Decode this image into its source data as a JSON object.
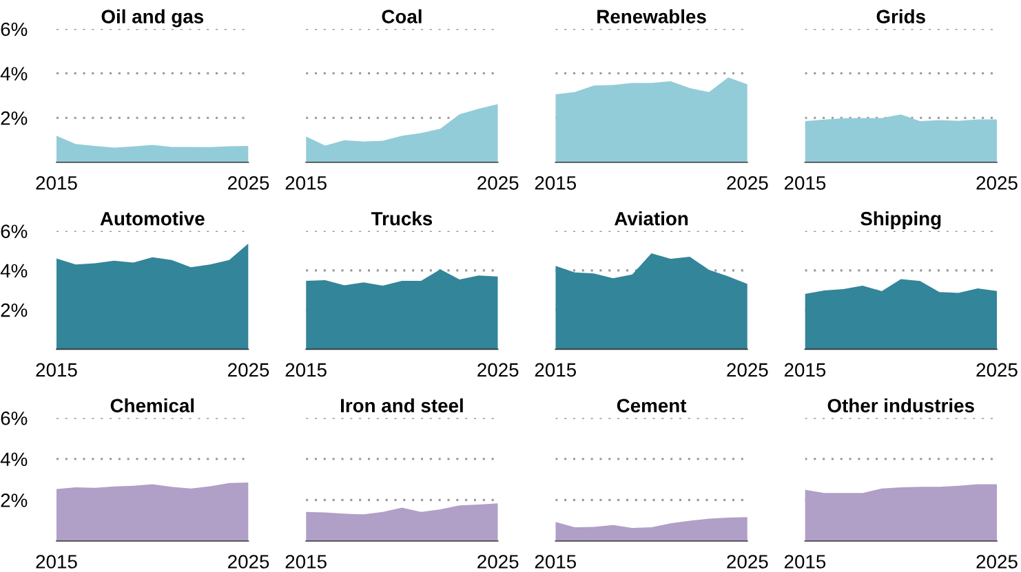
{
  "chart_data": [
    {
      "type": "area",
      "title": "Oil and gas",
      "x": [
        2015,
        2016,
        2017,
        2018,
        2019,
        2020,
        2021,
        2022,
        2023,
        2024,
        2025
      ],
      "values": [
        1.19,
        0.82,
        0.74,
        0.66,
        0.71,
        0.78,
        0.69,
        0.69,
        0.68,
        0.72,
        0.74
      ],
      "color": "#93ccd9",
      "xlim": [
        2015,
        2025
      ],
      "xticks": [
        2015,
        2025
      ],
      "ylim": [
        0,
        6
      ],
      "yticks": [
        {
          "value": 2,
          "label": "2%"
        },
        {
          "value": 4,
          "label": "4%"
        },
        {
          "value": 6,
          "label": "6%"
        }
      ],
      "grid": "y"
    },
    {
      "type": "area",
      "title": "Coal",
      "x": [
        2015,
        2016,
        2017,
        2018,
        2019,
        2020,
        2021,
        2022,
        2023,
        2024,
        2025
      ],
      "values": [
        1.16,
        0.75,
        0.99,
        0.94,
        0.97,
        1.19,
        1.32,
        1.51,
        2.16,
        2.41,
        2.62
      ],
      "color": "#93ccd9",
      "xlim": [
        2015,
        2025
      ],
      "xticks": [
        2015,
        2025
      ],
      "ylim": [
        0,
        6
      ],
      "yticks": [
        {
          "value": 2,
          "label": null
        },
        {
          "value": 4,
          "label": null
        },
        {
          "value": 6,
          "label": null
        }
      ],
      "grid": "y",
      "tick_labels": "x"
    },
    {
      "type": "area",
      "title": "Renewables",
      "x": [
        2015,
        2016,
        2017,
        2018,
        2019,
        2020,
        2021,
        2022,
        2023,
        2024,
        2025
      ],
      "values": [
        3.06,
        3.16,
        3.45,
        3.48,
        3.57,
        3.57,
        3.65,
        3.34,
        3.16,
        3.82,
        3.51
      ],
      "color": "#93ccd9",
      "xlim": [
        2015,
        2025
      ],
      "xticks": [
        2015,
        2025
      ],
      "ylim": [
        0,
        6
      ],
      "yticks": [
        {
          "value": 2,
          "label": null
        },
        {
          "value": 4,
          "label": null
        },
        {
          "value": 6,
          "label": null
        }
      ],
      "grid": "y",
      "tick_labels": "x"
    },
    {
      "type": "area",
      "title": "Grids",
      "x": [
        2015,
        2016,
        2017,
        2018,
        2019,
        2020,
        2021,
        2022,
        2023,
        2024,
        2025
      ],
      "values": [
        1.85,
        1.92,
        1.98,
        1.99,
        1.99,
        2.15,
        1.85,
        1.9,
        1.87,
        1.93,
        1.93
      ],
      "color": "#93ccd9",
      "xlim": [
        2015,
        2025
      ],
      "xticks": [
        2015,
        2025
      ],
      "ylim": [
        0,
        6
      ],
      "yticks": [
        {
          "value": 2,
          "label": null
        },
        {
          "value": 4,
          "label": null
        },
        {
          "value": 6,
          "label": null
        }
      ],
      "grid": "y",
      "tick_labels": "x"
    },
    {
      "type": "area",
      "title": "Automotive",
      "x": [
        2015,
        2016,
        2017,
        2018,
        2019,
        2020,
        2021,
        2022,
        2023,
        2024,
        2025
      ],
      "values": [
        4.61,
        4.3,
        4.36,
        4.49,
        4.4,
        4.67,
        4.53,
        4.16,
        4.3,
        4.53,
        5.37
      ],
      "color": "#33859a",
      "xlim": [
        2015,
        2025
      ],
      "xticks": [
        2015,
        2025
      ],
      "ylim": [
        0,
        6
      ],
      "yticks": [
        {
          "value": 2,
          "label": "2%"
        },
        {
          "value": 4,
          "label": "4%"
        },
        {
          "value": 6,
          "label": "6%"
        }
      ],
      "grid": "y"
    },
    {
      "type": "area",
      "title": "Trucks",
      "x": [
        2015,
        2016,
        2017,
        2018,
        2019,
        2020,
        2021,
        2022,
        2023,
        2024,
        2025
      ],
      "values": [
        3.47,
        3.51,
        3.24,
        3.39,
        3.23,
        3.47,
        3.47,
        4.06,
        3.54,
        3.74,
        3.69
      ],
      "color": "#33859a",
      "xlim": [
        2015,
        2025
      ],
      "xticks": [
        2015,
        2025
      ],
      "ylim": [
        0,
        6
      ],
      "yticks": [
        {
          "value": 2,
          "label": null
        },
        {
          "value": 4,
          "label": null
        },
        {
          "value": 6,
          "label": null
        }
      ],
      "grid": "y",
      "tick_labels": "x"
    },
    {
      "type": "area",
      "title": "Aviation",
      "x": [
        2015,
        2016,
        2017,
        2018,
        2019,
        2020,
        2021,
        2022,
        2023,
        2024,
        2025
      ],
      "values": [
        4.23,
        3.9,
        3.85,
        3.6,
        3.79,
        4.87,
        4.59,
        4.69,
        4.03,
        3.7,
        3.31
      ],
      "color": "#33859a",
      "xlim": [
        2015,
        2025
      ],
      "xticks": [
        2015,
        2025
      ],
      "ylim": [
        0,
        6
      ],
      "yticks": [
        {
          "value": 2,
          "label": null
        },
        {
          "value": 4,
          "label": null
        },
        {
          "value": 6,
          "label": null
        }
      ],
      "grid": "y",
      "tick_labels": "x"
    },
    {
      "type": "area",
      "title": "Shipping",
      "x": [
        2015,
        2016,
        2017,
        2018,
        2019,
        2020,
        2021,
        2022,
        2023,
        2024,
        2025
      ],
      "values": [
        2.81,
        2.98,
        3.05,
        3.23,
        2.95,
        3.56,
        3.46,
        2.9,
        2.86,
        3.09,
        2.96
      ],
      "color": "#33859a",
      "xlim": [
        2015,
        2025
      ],
      "xticks": [
        2015,
        2025
      ],
      "ylim": [
        0,
        6
      ],
      "yticks": [
        {
          "value": 2,
          "label": null
        },
        {
          "value": 4,
          "label": null
        },
        {
          "value": 6,
          "label": null
        }
      ],
      "grid": "y",
      "tick_labels": "x"
    },
    {
      "type": "area",
      "title": "Chemical",
      "x": [
        2015,
        2016,
        2017,
        2018,
        2019,
        2020,
        2021,
        2022,
        2023,
        2024,
        2025
      ],
      "values": [
        2.53,
        2.62,
        2.59,
        2.66,
        2.69,
        2.77,
        2.64,
        2.56,
        2.67,
        2.83,
        2.85
      ],
      "color": "#b09fc7",
      "xlim": [
        2015,
        2025
      ],
      "xticks": [
        2015,
        2025
      ],
      "ylim": [
        0,
        6
      ],
      "yticks": [
        {
          "value": 2,
          "label": "2%"
        },
        {
          "value": 4,
          "label": "4%"
        },
        {
          "value": 6,
          "label": "6%"
        }
      ],
      "grid": "y"
    },
    {
      "type": "area",
      "title": "Iron and steel",
      "x": [
        2015,
        2016,
        2017,
        2018,
        2019,
        2020,
        2021,
        2022,
        2023,
        2024,
        2025
      ],
      "values": [
        1.42,
        1.39,
        1.33,
        1.3,
        1.42,
        1.63,
        1.42,
        1.54,
        1.74,
        1.78,
        1.84
      ],
      "color": "#b09fc7",
      "xlim": [
        2015,
        2025
      ],
      "xticks": [
        2015,
        2025
      ],
      "ylim": [
        0,
        6
      ],
      "yticks": [
        {
          "value": 2,
          "label": null
        },
        {
          "value": 4,
          "label": null
        },
        {
          "value": 6,
          "label": null
        }
      ],
      "grid": "y",
      "tick_labels": "x"
    },
    {
      "type": "area",
      "title": "Cement",
      "x": [
        2015,
        2016,
        2017,
        2018,
        2019,
        2020,
        2021,
        2022,
        2023,
        2024,
        2025
      ],
      "values": [
        0.93,
        0.67,
        0.69,
        0.78,
        0.64,
        0.67,
        0.86,
        0.99,
        1.09,
        1.14,
        1.17
      ],
      "color": "#b09fc7",
      "xlim": [
        2015,
        2025
      ],
      "xticks": [
        2015,
        2025
      ],
      "ylim": [
        0,
        6
      ],
      "yticks": [
        {
          "value": 2,
          "label": null
        },
        {
          "value": 4,
          "label": null
        },
        {
          "value": 6,
          "label": null
        }
      ],
      "grid": "y",
      "tick_labels": "x"
    },
    {
      "type": "area",
      "title": "Other industries",
      "x": [
        2015,
        2016,
        2017,
        2018,
        2019,
        2020,
        2021,
        2022,
        2023,
        2024,
        2025
      ],
      "values": [
        2.5,
        2.34,
        2.34,
        2.34,
        2.56,
        2.62,
        2.64,
        2.64,
        2.69,
        2.77,
        2.77
      ],
      "color": "#b09fc7",
      "xlim": [
        2015,
        2025
      ],
      "xticks": [
        2015,
        2025
      ],
      "ylim": [
        0,
        6
      ],
      "yticks": [
        {
          "value": 2,
          "label": null
        },
        {
          "value": 4,
          "label": null
        },
        {
          "value": 6,
          "label": null
        }
      ],
      "grid": "y",
      "tick_labels": "x"
    }
  ]
}
